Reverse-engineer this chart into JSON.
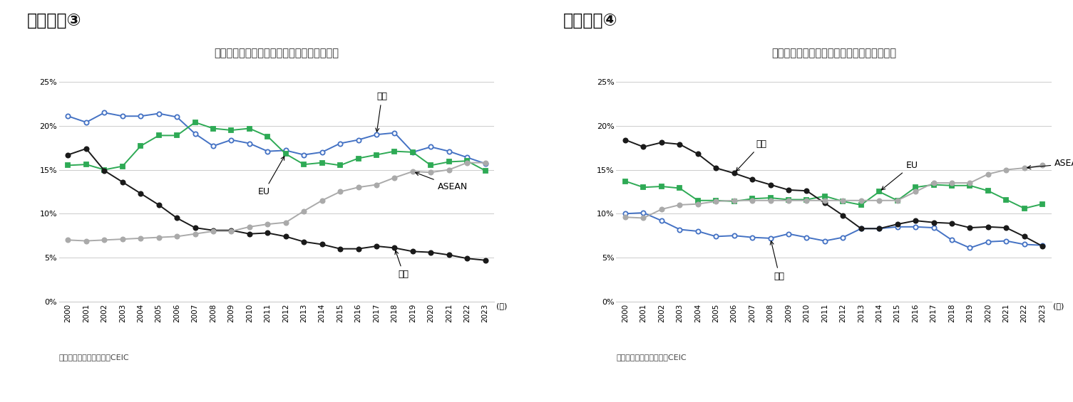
{
  "years": [
    2000,
    2001,
    2002,
    2003,
    2004,
    2005,
    2006,
    2007,
    2008,
    2009,
    2010,
    2011,
    2012,
    2013,
    2014,
    2015,
    2016,
    2017,
    2018,
    2019,
    2020,
    2021,
    2022,
    2023
  ],
  "export": {
    "US": [
      21.1,
      20.4,
      21.5,
      21.1,
      21.1,
      21.4,
      21.0,
      19.1,
      17.7,
      18.4,
      18.0,
      17.1,
      17.2,
      16.7,
      17.0,
      18.0,
      18.4,
      19.0,
      19.2,
      17.0,
      17.6,
      17.1,
      16.4,
      15.7
    ],
    "EU": [
      15.5,
      15.6,
      15.0,
      15.4,
      17.7,
      18.9,
      18.9,
      20.4,
      19.7,
      19.5,
      19.7,
      18.8,
      16.8,
      15.6,
      15.8,
      15.5,
      16.3,
      16.7,
      17.1,
      17.0,
      15.5,
      15.9,
      16.0,
      14.9
    ],
    "Japan": [
      16.7,
      17.4,
      14.9,
      13.6,
      12.3,
      11.0,
      9.5,
      8.4,
      8.1,
      8.1,
      7.7,
      7.8,
      7.4,
      6.8,
      6.5,
      6.0,
      6.0,
      6.3,
      6.1,
      5.7,
      5.6,
      5.3,
      4.9,
      4.7
    ],
    "ASEAN": [
      7.0,
      6.9,
      7.0,
      7.1,
      7.2,
      7.3,
      7.4,
      7.7,
      8.0,
      8.0,
      8.5,
      8.8,
      9.0,
      10.3,
      11.5,
      12.5,
      13.0,
      13.3,
      14.1,
      14.8,
      14.7,
      15.0,
      15.8,
      15.8
    ]
  },
  "import": {
    "US": [
      10.0,
      10.1,
      9.2,
      8.2,
      8.0,
      7.4,
      7.5,
      7.3,
      7.2,
      7.7,
      7.3,
      6.9,
      7.3,
      8.3,
      8.3,
      8.5,
      8.5,
      8.4,
      7.0,
      6.1,
      6.8,
      6.9,
      6.5,
      6.4
    ],
    "EU": [
      13.7,
      13.0,
      13.1,
      12.9,
      11.5,
      11.5,
      11.4,
      11.7,
      11.8,
      11.6,
      11.6,
      12.0,
      11.4,
      11.0,
      12.5,
      11.5,
      13.0,
      13.3,
      13.2,
      13.2,
      12.6,
      11.6,
      10.6,
      11.1
    ],
    "Japan": [
      18.4,
      17.6,
      18.1,
      17.9,
      16.8,
      15.2,
      14.6,
      13.9,
      13.3,
      12.7,
      12.6,
      11.2,
      9.8,
      8.3,
      8.3,
      8.8,
      9.2,
      9.0,
      8.9,
      8.4,
      8.5,
      8.4,
      7.4,
      6.3
    ],
    "ASEAN": [
      9.6,
      9.5,
      10.5,
      11.0,
      11.1,
      11.4,
      11.5,
      11.5,
      11.5,
      11.5,
      11.5,
      11.5,
      11.5,
      11.5,
      11.5,
      11.5,
      12.5,
      13.5,
      13.5,
      13.5,
      14.5,
      15.0,
      15.2,
      15.5
    ]
  },
  "fig3_title": "中国の輸出総額に占める地域別シェアの推移",
  "fig4_title": "中国の輸入総額に占める地域別シェアの推移",
  "fig3_label": "図表７－③",
  "fig4_label": "図表７－④",
  "source": "（資料）中国海関総署、CEIC",
  "label_US": "米国",
  "label_EU": "EU",
  "label_Japan": "日本",
  "label_ASEAN": "ASEAN",
  "label_year": "(年)",
  "color_US": "#4472C4",
  "color_EU": "#2EAA55",
  "color_Japan": "#1A1A1A",
  "color_ASEAN": "#AAAAAA"
}
